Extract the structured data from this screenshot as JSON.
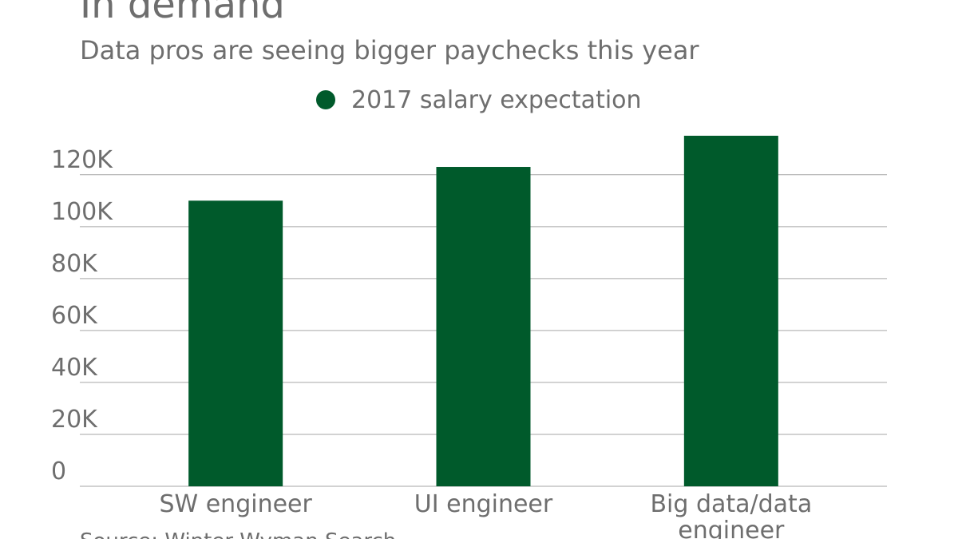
{
  "chart_data": {
    "type": "bar",
    "title": "In demand",
    "subtitle": "Data pros are seeing bigger paychecks this year",
    "categories": [
      "SW engineer",
      "UI engineer",
      "Big data/data engineer"
    ],
    "category_lines": [
      [
        "SW engineer"
      ],
      [
        "UI engineer"
      ],
      [
        "Big data/data",
        "engineer"
      ]
    ],
    "series": [
      {
        "name": "2017 salary expectation",
        "values": [
          110000,
          123000,
          135000
        ],
        "color": "#005a2b"
      }
    ],
    "yticks": [
      0,
      20000,
      40000,
      60000,
      80000,
      100000,
      120000
    ],
    "ytick_labels": [
      "0",
      "20K",
      "40K",
      "60K",
      "80K",
      "100K",
      "120K"
    ],
    "ylim": [
      0,
      135000
    ],
    "grid": true,
    "legend_position": "top-center",
    "source": "Source: Winter Wyman Search",
    "colors": {
      "text": "#6e6e6e",
      "grid": "#a6a6a6",
      "bar": "#005a2b"
    }
  }
}
